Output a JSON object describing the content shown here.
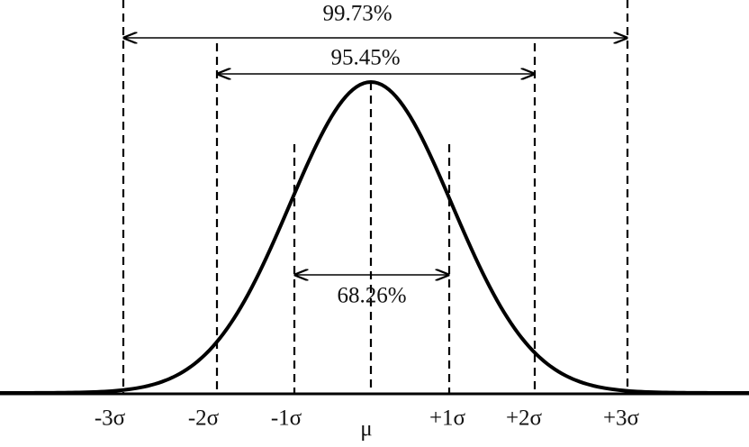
{
  "intervals": {
    "three_sigma": "99.73%",
    "two_sigma": "95.45%",
    "one_sigma": "68.26%"
  },
  "axis_labels": [
    "-3σ",
    "-2σ",
    "-1σ",
    "μ",
    "+1σ",
    "+2σ",
    "+3σ"
  ]
}
